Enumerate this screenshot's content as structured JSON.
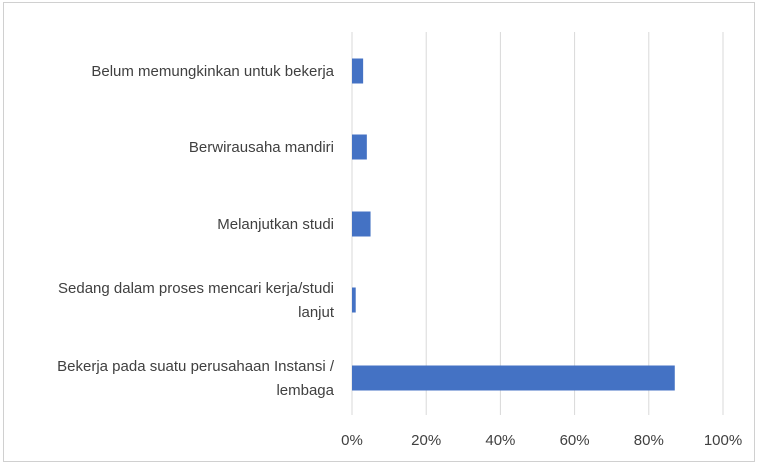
{
  "chart_data": {
    "type": "bar",
    "orientation": "horizontal",
    "categories": [
      "Belum memungkinkan untuk bekerja",
      "Berwirausaha mandiri",
      "Melanjutkan studi",
      "Sedang dalam proses mencari kerja/studi lanjut",
      "Bekerja pada suatu perusahaan Instansi / lembaga"
    ],
    "category_label_lines": [
      [
        "Belum memungkinkan untuk bekerja"
      ],
      [
        "Berwirausaha mandiri"
      ],
      [
        "Melanjutkan studi"
      ],
      [
        "Sedang dalam proses mencari kerja/studi",
        "lanjut"
      ],
      [
        "Bekerja pada suatu perusahaan Instansi /",
        "lembaga"
      ]
    ],
    "values": [
      0.03,
      0.04,
      0.05,
      0.01,
      0.87
    ],
    "xlim": [
      0,
      1
    ],
    "x_ticks": [
      0,
      0.2,
      0.4,
      0.6,
      0.8,
      1.0
    ],
    "x_tick_labels": [
      "0%",
      "20%",
      "40%",
      "60%",
      "80%",
      "100%"
    ],
    "title": "",
    "xlabel": "",
    "ylabel": "",
    "grid": "vertical",
    "legend": "none",
    "bar_color": "#4472C4",
    "gridline_color": "#d9d9d9",
    "text_color": "#404040"
  }
}
